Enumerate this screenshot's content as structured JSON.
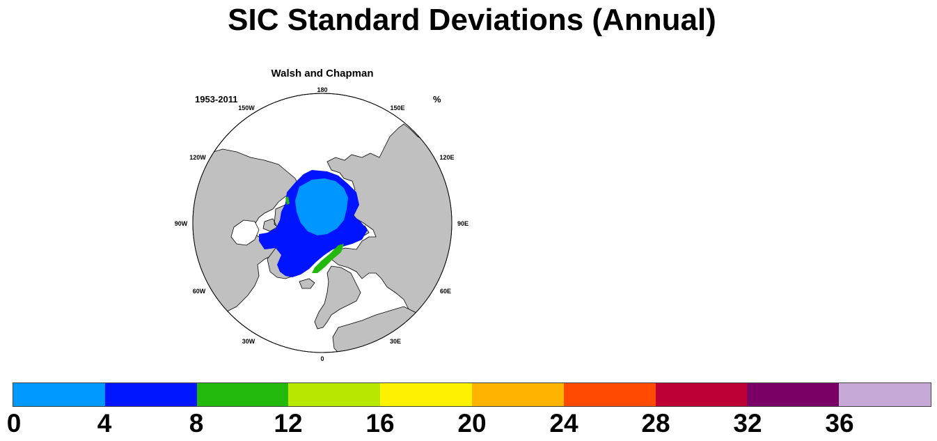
{
  "title": "SIC Standard Deviations (Annual)",
  "panel": {
    "subtitle": "Walsh and Chapman",
    "left_label": "1953-2011",
    "right_label": "%",
    "lon_labels": {
      "top": "180",
      "ne150": "150E",
      "nw150": "150W",
      "ne120": "120E",
      "nw120": "120W",
      "e90": "90E",
      "w90": "90W",
      "se60": "60E",
      "sw60": "60W",
      "se30": "30E",
      "sw30": "30W",
      "bottom": "0"
    }
  },
  "colors": {
    "land": "#c0c0c0",
    "ocean": "#ffffff",
    "ice_0_4": "#0096ff",
    "ice_4_8": "#0014ff"
  },
  "colorbar": {
    "colors": [
      "#0099ff",
      "#0016ff",
      "#22b80c",
      "#b8e800",
      "#fff200",
      "#ffb400",
      "#ff4a00",
      "#bd0036",
      "#7a0066",
      "#c6a9d6"
    ],
    "labels": [
      "0",
      "4",
      "8",
      "12",
      "16",
      "20",
      "24",
      "28",
      "32",
      "36"
    ]
  }
}
